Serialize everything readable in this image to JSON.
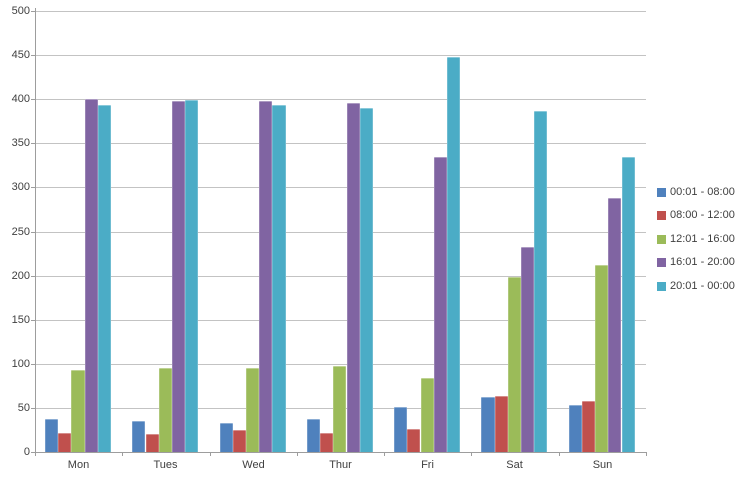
{
  "chart_data": {
    "type": "bar",
    "title": "",
    "xlabel": "",
    "ylabel": "",
    "categories": [
      "Mon",
      "Tues",
      "Wed",
      "Thur",
      "Fri",
      "Sat",
      "Sun"
    ],
    "series": [
      {
        "name": "00:01 - 08:00",
        "color": "#4F81BD",
        "values": [
          37,
          35,
          33,
          38,
          51,
          62,
          53
        ]
      },
      {
        "name": "08:00 - 12:00",
        "color": "#C0504D",
        "values": [
          22,
          20,
          25,
          22,
          26,
          64,
          58
        ]
      },
      {
        "name": "12:01 - 16:00",
        "color": "#9BBB59",
        "values": [
          93,
          95,
          95,
          98,
          84,
          199,
          212
        ]
      },
      {
        "name": "16:01 - 20:00",
        "color": "#8064A2",
        "values": [
          400,
          398,
          398,
          396,
          334,
          232,
          288
        ]
      },
      {
        "name": "20:01 - 00:00",
        "color": "#4BACC6",
        "values": [
          394,
          399,
          394,
          390,
          448,
          387,
          334
        ]
      }
    ],
    "ylim": [
      0,
      500
    ],
    "ytick_step": 50,
    "ytick_labels": [
      "0",
      "50",
      "100",
      "150",
      "200",
      "250",
      "300",
      "350",
      "400",
      "450",
      "500"
    ],
    "grid": true,
    "legend_position": "right"
  },
  "style": {
    "gridline_color": "#c3c3c3",
    "axis_color": "#9d9d9d",
    "text_color": "#404040",
    "background": "#ffffff"
  }
}
